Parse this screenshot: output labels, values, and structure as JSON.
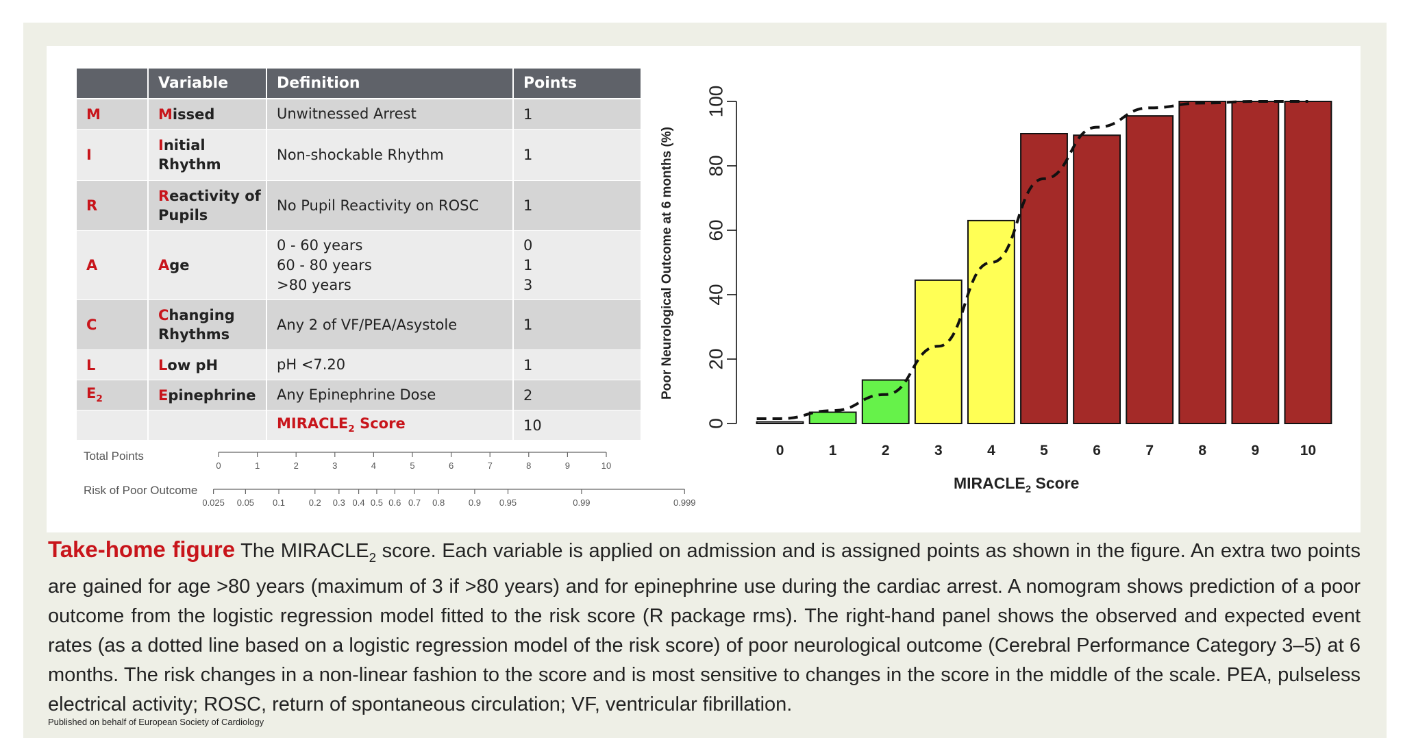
{
  "table": {
    "headers": [
      "",
      "Variable",
      "Definition",
      "Points"
    ],
    "rows": [
      {
        "letter": "M",
        "var_first": "M",
        "var_rest": "issed",
        "var_rest2": "",
        "def": [
          "Unwitnessed Arrest"
        ],
        "points": [
          "1"
        ]
      },
      {
        "letter": "I",
        "var_first": "I",
        "var_rest": "nitial",
        "var_rest2": "Rhythm",
        "def": [
          "Non-shockable Rhythm"
        ],
        "points": [
          "1"
        ]
      },
      {
        "letter": "R",
        "var_first": "R",
        "var_rest": "eactivity of",
        "var_rest2": "Pupils",
        "def": [
          "No Pupil Reactivity on ROSC"
        ],
        "points": [
          "1"
        ]
      },
      {
        "letter": "A",
        "var_first": "A",
        "var_rest": "ge",
        "var_rest2": "",
        "def": [
          "0 - 60 years",
          "60 - 80 years",
          ">80 years"
        ],
        "points": [
          "0",
          "1",
          "3"
        ]
      },
      {
        "letter": "C",
        "var_first": "C",
        "var_rest": "hanging",
        "var_rest2": "Rhythms",
        "def": [
          "Any 2 of VF/PEA/Asystole"
        ],
        "points": [
          "1"
        ]
      },
      {
        "letter": "L",
        "var_first": "L",
        "var_rest": "ow pH",
        "var_rest2": "",
        "def": [
          "pH <7.20"
        ],
        "points": [
          "1"
        ]
      },
      {
        "letter": "E",
        "letter_sub": "2",
        "var_first": "E",
        "var_rest": "pinephrine",
        "var_rest2": "",
        "def": [
          "Any Epinephrine Dose"
        ],
        "points": [
          "2"
        ]
      }
    ],
    "total_label": "MIRACLE",
    "total_sub": "2",
    "total_label_suffix": " Score",
    "total_points": "10"
  },
  "nomogram": {
    "total_points_label": "Total Points",
    "total_points_ticks": [
      "0",
      "1",
      "2",
      "3",
      "4",
      "5",
      "6",
      "7",
      "8",
      "9",
      "10"
    ],
    "risk_label": "Risk of Poor Outcome",
    "risk_ticks": [
      "0.025",
      "0.05",
      "0.1",
      "0.2",
      "0.3",
      "0.4",
      "0.5",
      "0.6",
      "0.7",
      "0.8",
      "0.9",
      "0.95",
      "0.99",
      "0.999"
    ]
  },
  "chart_data": {
    "type": "bar",
    "categories": [
      "0",
      "1",
      "2",
      "3",
      "4",
      "5",
      "6",
      "7",
      "8",
      "9",
      "10"
    ],
    "values": [
      0.5,
      3.5,
      13.5,
      44.5,
      63,
      90,
      89.5,
      95.5,
      100,
      100,
      100
    ],
    "bar_colors": [
      "#ffffff",
      "#66f24a",
      "#66f24a",
      "#ffff55",
      "#ffff55",
      "#a42a28",
      "#a42a28",
      "#a42a28",
      "#a42a28",
      "#a42a28",
      "#a42a28"
    ],
    "expected_curve": [
      1.5,
      4,
      9,
      24,
      50,
      76,
      92,
      98,
      99.5,
      100,
      100
    ],
    "expected_curve_style": "dashed",
    "xlabel": "MIRACLE",
    "xlabel_sub": "2",
    "xlabel_suffix": " Score",
    "ylabel": "Poor Neurological Outcome at 6 months (%)",
    "ylim": [
      0,
      100
    ],
    "yticks": [
      "0",
      "20",
      "40",
      "60",
      "80",
      "100"
    ],
    "grid": false
  },
  "caption": {
    "title": "Take-home figure",
    "part1": " The MIRACLE",
    "sub": "2",
    "part2": " score. Each variable is applied on admission and is assigned points as shown in the figure. An extra two points are gained for age >80 years (maximum of 3 if >80 years) and for epinephrine use during the cardiac arrest. A nomogram shows prediction of a poor outcome from the logistic regression model fitted to the risk score (R package rms). The right-hand panel shows the observed and expected event rates (as a dotted line based on a logistic regression model of the risk score) of poor neurological outcome (Cerebral Performance Category 3–5) at 6 months. The risk changes in a non-linear fashion to the score and is most sensitive to changes in the score in the middle of the scale. PEA, pulseless electrical activity; ROSC, return of spontaneous circulation; VF, ventricular fibrillation."
  },
  "publisher": "Published on behalf of European Society of Cardiology",
  "colors": {
    "accent_red": "#c8151b",
    "bar_red": "#a42a28",
    "bar_green": "#66f24a",
    "bar_yellow": "#ffff55",
    "header_gray": "#5f6269",
    "frame_bg": "#eeefe6"
  }
}
